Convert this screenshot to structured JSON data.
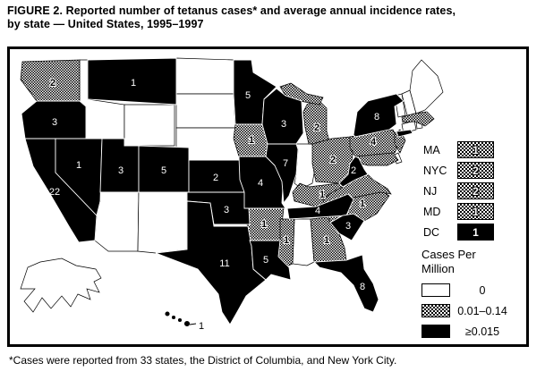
{
  "figure": {
    "title_line1": "FIGURE 2. Reported number of tetanus cases* and average annual incidence rates,",
    "title_line2": "by state — United States, 1995–1997",
    "footnote": "*Cases were reported from 33 states, the District of Columbia, and New York City."
  },
  "legend": {
    "title_line1": "Cases Per",
    "title_line2": "Million",
    "items": [
      {
        "class": "zero",
        "label": "0"
      },
      {
        "class": "low",
        "label": "0.01–0.14"
      },
      {
        "class": "high",
        "label": "≥0.015"
      }
    ]
  },
  "colors": {
    "fill_high": "#000000",
    "fill_zero": "#ffffff",
    "hatch": "checkerboard"
  },
  "chart_data": {
    "type": "heatmap",
    "subtype": "us-state-choropleth",
    "title": "FIGURE 2. Reported number of tetanus cases and average annual incidence rates, by state — United States, 1995–1997",
    "legend_title": "Cases Per Million",
    "classes": {
      "zero": "0 cases per million",
      "low": "0.01–0.14 cases per million",
      "high": "≥0.015 cases per million"
    },
    "states": [
      {
        "id": "WA",
        "cases": "2",
        "class": "low"
      },
      {
        "id": "OR",
        "cases": "3",
        "class": "high"
      },
      {
        "id": "CA",
        "cases": "22",
        "class": "high"
      },
      {
        "id": "NV",
        "cases": "1",
        "class": "high"
      },
      {
        "id": "ID",
        "cases": null,
        "class": "zero"
      },
      {
        "id": "MT",
        "cases": "1",
        "class": "high"
      },
      {
        "id": "WY",
        "cases": null,
        "class": "zero"
      },
      {
        "id": "UT",
        "cases": "3",
        "class": "high"
      },
      {
        "id": "CO",
        "cases": "5",
        "class": "high"
      },
      {
        "id": "AZ",
        "cases": null,
        "class": "zero"
      },
      {
        "id": "NM",
        "cases": null,
        "class": "zero"
      },
      {
        "id": "ND",
        "cases": null,
        "class": "zero"
      },
      {
        "id": "SD",
        "cases": null,
        "class": "zero"
      },
      {
        "id": "NE",
        "cases": null,
        "class": "zero"
      },
      {
        "id": "KS",
        "cases": "2",
        "class": "high"
      },
      {
        "id": "OK",
        "cases": "3",
        "class": "high"
      },
      {
        "id": "TX",
        "cases": "11",
        "class": "high"
      },
      {
        "id": "MN",
        "cases": "5",
        "class": "high"
      },
      {
        "id": "IA",
        "cases": "1",
        "class": "low"
      },
      {
        "id": "MO",
        "cases": "4",
        "class": "high"
      },
      {
        "id": "AR",
        "cases": "1",
        "class": "low"
      },
      {
        "id": "LA",
        "cases": "5",
        "class": "high"
      },
      {
        "id": "WI",
        "cases": "3",
        "class": "high"
      },
      {
        "id": "IL",
        "cases": "7",
        "class": "high"
      },
      {
        "id": "MI",
        "cases": "2",
        "class": "low"
      },
      {
        "id": "IN",
        "cases": null,
        "class": "zero"
      },
      {
        "id": "OH",
        "cases": "2",
        "class": "low"
      },
      {
        "id": "KY",
        "cases": "1",
        "class": "low"
      },
      {
        "id": "TN",
        "cases": "4",
        "class": "high"
      },
      {
        "id": "MS",
        "cases": "1",
        "class": "low"
      },
      {
        "id": "AL",
        "cases": null,
        "class": "zero"
      },
      {
        "id": "GA",
        "cases": "1",
        "class": "low"
      },
      {
        "id": "FL",
        "cases": "8",
        "class": "high"
      },
      {
        "id": "SC",
        "cases": "3",
        "class": "high"
      },
      {
        "id": "NC",
        "cases": "1",
        "class": "low"
      },
      {
        "id": "VA",
        "cases": null,
        "class": "low"
      },
      {
        "id": "WV",
        "cases": "2",
        "class": "high"
      },
      {
        "id": "PA",
        "cases": "4",
        "class": "low"
      },
      {
        "id": "NY",
        "cases": "8",
        "class": "high"
      },
      {
        "id": "NJ",
        "cases": null,
        "class": "low"
      },
      {
        "id": "MD",
        "cases": null,
        "class": "low"
      },
      {
        "id": "DE",
        "cases": null,
        "class": "zero"
      },
      {
        "id": "CT",
        "cases": null,
        "class": "zero"
      },
      {
        "id": "RI",
        "cases": null,
        "class": "zero"
      },
      {
        "id": "MA",
        "cases": null,
        "class": "low"
      },
      {
        "id": "VT",
        "cases": null,
        "class": "zero"
      },
      {
        "id": "NH",
        "cases": null,
        "class": "zero"
      },
      {
        "id": "ME",
        "cases": null,
        "class": "zero"
      },
      {
        "id": "AK",
        "cases": null,
        "class": "zero"
      },
      {
        "id": "HI",
        "cases": "1",
        "class": "high"
      }
    ],
    "callouts": [
      {
        "id": "MA",
        "cases": "1",
        "class": "low"
      },
      {
        "id": "NYC",
        "cases": "2",
        "class": "low"
      },
      {
        "id": "NJ",
        "cases": "2",
        "class": "low"
      },
      {
        "id": "MD",
        "cases": "1",
        "class": "low"
      },
      {
        "id": "DC",
        "cases": "1",
        "class": "high"
      }
    ]
  }
}
